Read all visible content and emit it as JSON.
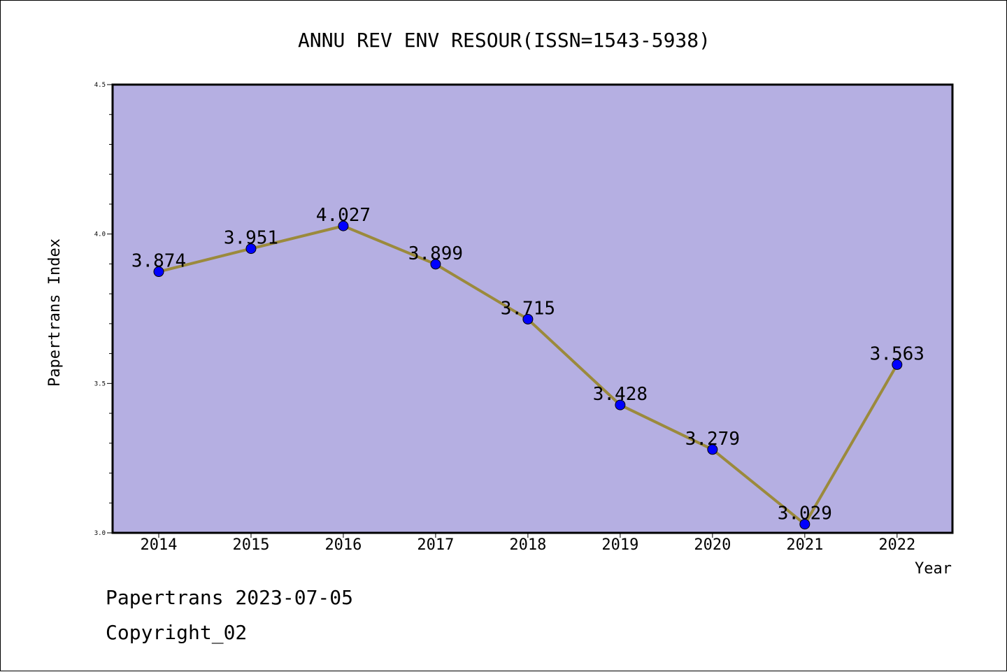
{
  "chart_data": {
    "type": "line",
    "title": "ANNU REV ENV RESOUR(ISSN=1543-5938)",
    "xlabel": "Year",
    "ylabel": "Papertrans Index",
    "categories": [
      "2014",
      "2015",
      "2016",
      "2017",
      "2018",
      "2019",
      "2020",
      "2021",
      "2022"
    ],
    "values": [
      3.874,
      3.951,
      4.027,
      3.899,
      3.715,
      3.428,
      3.279,
      3.029,
      3.563
    ],
    "value_labels": [
      "3.874",
      "3.951",
      "4.027",
      "3.899",
      "3.715",
      "3.428",
      "3.279",
      "3.029",
      "3.563"
    ],
    "ylim": [
      3.0,
      4.5
    ],
    "yticks": [
      3.0,
      3.5,
      4.0,
      4.5
    ],
    "ytick_labels": [
      "3.0",
      "3.5",
      "4.0",
      "4.5"
    ],
    "grid": false,
    "colors": {
      "plot_background": "#b5afe2",
      "line": "#9b8a3c",
      "marker": "#0000ff"
    }
  },
  "footer": {
    "line1": "Papertrans 2023-07-05",
    "line2": "Copyright_02"
  }
}
